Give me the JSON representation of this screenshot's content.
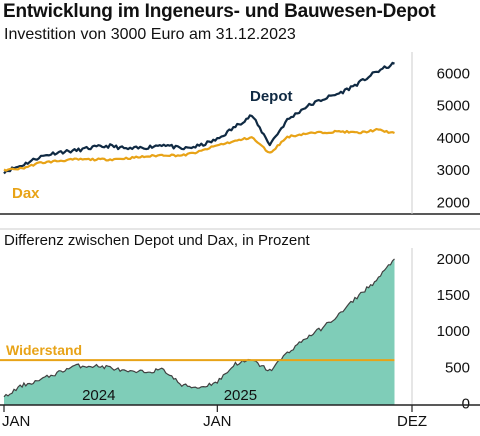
{
  "title": "Entwicklung im Ingeneurs- und Bauwesen-Depot",
  "subtitle": "Investition von 3000 Euro am 31.12.2023",
  "colors": {
    "depot": "#102a43",
    "dax": "#e8a317",
    "diff_fill": "#7fcdb8",
    "diff_line": "#404040",
    "axis": "#222222",
    "grid": "#cccccc"
  },
  "chart_data": [
    {
      "type": "line",
      "title": "Entwicklung im Ingeneurs- und Bauwesen-Depot",
      "subtitle": "Investition von 3000 Euro am 31.12.2023",
      "x": [
        "2024-01-01",
        "2024-02-01",
        "2024-03-01",
        "2024-04-01",
        "2024-05-01",
        "2024-06-01",
        "2024-07-01",
        "2024-08-01",
        "2024-09-01",
        "2024-10-01",
        "2024-11-01",
        "2024-12-01",
        "2025-01-01",
        "2025-02-01",
        "2025-03-01",
        "2025-04-01",
        "2025-05-01",
        "2025-06-01",
        "2025-07-01",
        "2025-08-01",
        "2025-09-01",
        "2025-10-01",
        "2025-11-01"
      ],
      "series": [
        {
          "name": "Depot",
          "values": [
            2950,
            3150,
            3400,
            3550,
            3600,
            3700,
            3750,
            3650,
            3700,
            3800,
            3650,
            3750,
            3950,
            4350,
            4700,
            3800,
            4550,
            4950,
            5200,
            5400,
            5700,
            6050,
            6300
          ]
        },
        {
          "name": "Dax",
          "values": [
            3000,
            3050,
            3220,
            3280,
            3330,
            3330,
            3330,
            3370,
            3420,
            3470,
            3450,
            3570,
            3770,
            3900,
            4020,
            3520,
            4030,
            4130,
            4170,
            4200,
            4150,
            4250,
            4150
          ]
        }
      ],
      "yticks": [
        2000,
        3000,
        4000,
        5000,
        6000
      ],
      "ylim": [
        1700,
        6600
      ],
      "xlim": [
        "2024-01-01",
        "2025-12-01"
      ]
    },
    {
      "type": "area",
      "title": "Differenz zwischen Depot und Dax, in Prozent",
      "x": [
        "2024-01-01",
        "2024-02-01",
        "2024-03-01",
        "2024-04-01",
        "2024-05-01",
        "2024-06-01",
        "2024-07-01",
        "2024-08-01",
        "2024-09-01",
        "2024-10-01",
        "2024-11-01",
        "2024-12-01",
        "2025-01-01",
        "2025-02-01",
        "2025-03-01",
        "2025-04-01",
        "2025-05-01",
        "2025-06-01",
        "2025-07-01",
        "2025-08-01",
        "2025-09-01",
        "2025-10-01",
        "2025-11-01"
      ],
      "values": [
        80,
        250,
        320,
        420,
        520,
        520,
        500,
        430,
        440,
        470,
        250,
        220,
        300,
        550,
        600,
        450,
        700,
        900,
        1050,
        1250,
        1500,
        1700,
        2000
      ],
      "annotation": {
        "label": "Widerstand",
        "value": 600
      },
      "yticks": [
        0,
        500,
        1000,
        1500,
        2000
      ],
      "ylim": [
        -200,
        2150
      ],
      "xlim": [
        "2024-01-01",
        "2025-12-01"
      ],
      "year_labels": [
        "2024",
        "2025"
      ],
      "xtick_labels": [
        "JAN",
        "JAN",
        "DEZ"
      ]
    }
  ]
}
